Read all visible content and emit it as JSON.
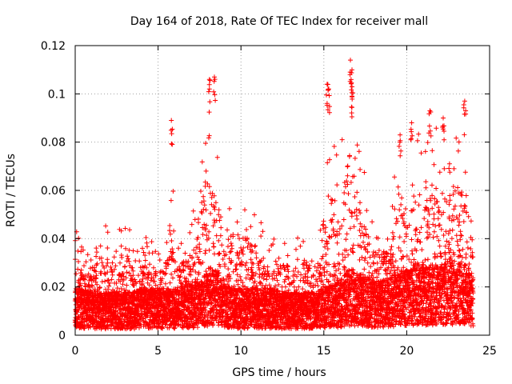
{
  "chart_data": {
    "type": "scatter",
    "title": "Day 164 of 2018, Rate Of TEC Index for receiver mall",
    "xlabel": "GPS time / hours",
    "ylabel": "ROTI / TECUs",
    "xlim": [
      0,
      25
    ],
    "ylim": [
      0,
      0.12
    ],
    "xticks": [
      0,
      5,
      10,
      15,
      20,
      25
    ],
    "yticks": [
      0,
      0.02,
      0.04,
      0.06,
      0.08,
      0.1,
      0.12
    ],
    "xtick_labels": [
      "0",
      "5",
      "10",
      "15",
      "20",
      "25"
    ],
    "ytick_labels": [
      "0",
      "0.02",
      "0.04",
      "0.06",
      "0.08",
      "0.1",
      "0.12"
    ],
    "grid": true,
    "marker": "+",
    "color": "#ff0000",
    "data_span_hours": [
      0,
      24
    ],
    "sampling_step_hours": 0.02,
    "description_of_series": "ROTI values for all satellites observed by receiver mall; dense cloud mostly between 0.005 and 0.03 TECU/s",
    "envelope": {
      "x": [
        0,
        0.5,
        1,
        1.5,
        2,
        2.5,
        3,
        3.5,
        4,
        4.5,
        5,
        5.5,
        5.8,
        6,
        6.5,
        7,
        7.5,
        8,
        8.3,
        8.6,
        9,
        9.5,
        10,
        10.5,
        11,
        11.5,
        12,
        12.5,
        13,
        13.5,
        14,
        14.5,
        15,
        15.3,
        15.6,
        16,
        16.3,
        16.6,
        17,
        17.5,
        18,
        18.5,
        19,
        19.5,
        20,
        20.5,
        21,
        21.5,
        22,
        22.5,
        23,
        23.5,
        24
      ],
      "baseline": [
        0.012,
        0.012,
        0.011,
        0.011,
        0.011,
        0.011,
        0.011,
        0.011,
        0.012,
        0.012,
        0.012,
        0.012,
        0.012,
        0.012,
        0.013,
        0.013,
        0.014,
        0.016,
        0.017,
        0.016,
        0.013,
        0.012,
        0.012,
        0.012,
        0.012,
        0.012,
        0.012,
        0.011,
        0.011,
        0.011,
        0.011,
        0.011,
        0.012,
        0.013,
        0.013,
        0.014,
        0.016,
        0.017,
        0.016,
        0.015,
        0.014,
        0.014,
        0.015,
        0.016,
        0.017,
        0.018,
        0.018,
        0.018,
        0.018,
        0.019,
        0.019,
        0.018,
        0.016
      ],
      "upper": [
        0.045,
        0.035,
        0.04,
        0.048,
        0.045,
        0.04,
        0.052,
        0.038,
        0.041,
        0.04,
        0.035,
        0.04,
        0.089,
        0.045,
        0.043,
        0.044,
        0.075,
        0.106,
        0.101,
        0.085,
        0.055,
        0.064,
        0.06,
        0.063,
        0.052,
        0.045,
        0.04,
        0.042,
        0.04,
        0.045,
        0.045,
        0.044,
        0.05,
        0.103,
        0.08,
        0.073,
        0.105,
        0.114,
        0.09,
        0.067,
        0.05,
        0.048,
        0.055,
        0.083,
        0.07,
        0.087,
        0.08,
        0.092,
        0.088,
        0.085,
        0.096,
        0.085,
        0.06
      ]
    },
    "notable_spikes": [
      {
        "x": 5.8,
        "y": 0.089
      },
      {
        "x": 8.1,
        "y": 0.106
      },
      {
        "x": 8.4,
        "y": 0.107
      },
      {
        "x": 15.2,
        "y": 0.104
      },
      {
        "x": 15.3,
        "y": 0.102
      },
      {
        "x": 16.6,
        "y": 0.114
      },
      {
        "x": 16.7,
        "y": 0.11
      },
      {
        "x": 16.7,
        "y": 0.099
      },
      {
        "x": 21.4,
        "y": 0.093
      },
      {
        "x": 22.2,
        "y": 0.09
      },
      {
        "x": 23.5,
        "y": 0.097
      },
      {
        "x": 19.6,
        "y": 0.083
      },
      {
        "x": 20.3,
        "y": 0.088
      }
    ]
  }
}
